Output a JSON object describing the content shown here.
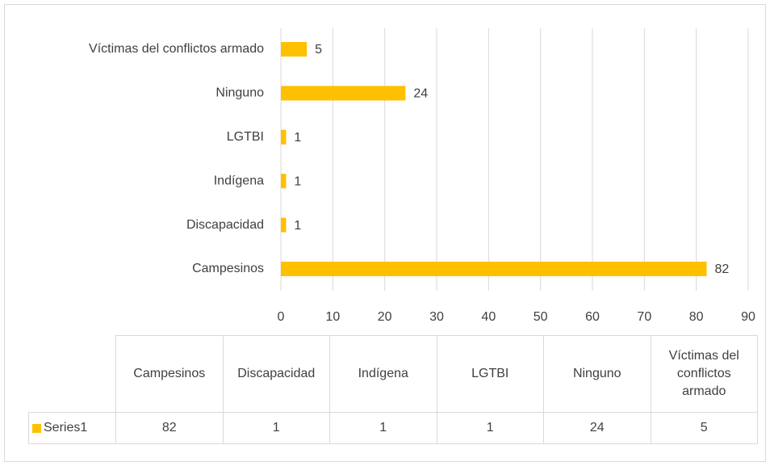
{
  "chart_data": {
    "type": "bar",
    "orientation": "horizontal",
    "categories": [
      "Campesinos",
      "Discapacidad",
      "Indígena",
      "LGTBI",
      "Ninguno",
      "Víctimas del conflictos armado"
    ],
    "series": [
      {
        "name": "Series1",
        "color": "#FFC000",
        "values": [
          82,
          1,
          1,
          1,
          24,
          5
        ]
      }
    ],
    "xlim": [
      0,
      90
    ],
    "xticks": [
      0,
      10,
      20,
      30,
      40,
      50,
      60,
      70,
      80,
      90
    ],
    "grid": true,
    "data_table": true
  }
}
